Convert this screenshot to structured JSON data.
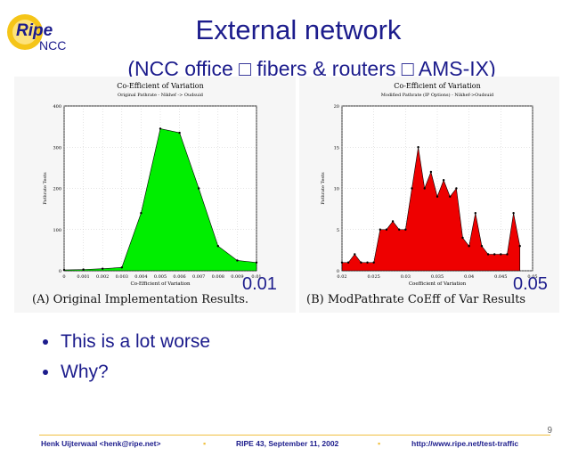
{
  "logo": {
    "line1": "Ripe",
    "line2": "NCC"
  },
  "header": {
    "title": "External network",
    "subtitle": "(NCC office □ fibers & routers □ AMS-IX)"
  },
  "charts_meta": {
    "left_corner_label": "0.01",
    "right_corner_label": "0.05",
    "left_caption": "(A) Original Implementation Results.",
    "right_caption": "(B) ModPathrate CoEff of Var Results"
  },
  "chart_data": [
    {
      "type": "area",
      "title": "Co-Efficient of Variation",
      "subtitle": "Original Pathrate - Nikhef -> Oudsuid",
      "xlabel": "Co-Efficient of Variation",
      "ylabel": "Pathrate Tests",
      "xlim": [
        0,
        0.01
      ],
      "ylim": [
        0,
        400
      ],
      "xticks": [
        "0",
        "0.001",
        "0.002",
        "0.003",
        "0.004",
        "0.005",
        "0.006",
        "0.007",
        "0.008",
        "0.009",
        "0.01"
      ],
      "yticks": [
        "0",
        "100",
        "200",
        "300",
        "400"
      ],
      "x": [
        0,
        0.001,
        0.002,
        0.003,
        0.004,
        0.005,
        0.006,
        0.007,
        0.008,
        0.009,
        0.01
      ],
      "values": [
        2,
        3,
        5,
        8,
        140,
        345,
        335,
        200,
        60,
        25,
        20
      ],
      "fill": "#00ee00",
      "grid": true
    },
    {
      "type": "area",
      "title": "Co-Efficient of Variation",
      "subtitle": "Modified Pathrate (IP Options) - Nikhef->Oudsuid",
      "xlabel": "Coefficient of Variation",
      "ylabel": "Pathrate Tests",
      "xlim": [
        0.02,
        0.05
      ],
      "ylim": [
        0,
        20
      ],
      "xticks": [
        "0.02",
        "0.025",
        "0.03",
        "0.035",
        "0.04",
        "0.045",
        "0.05"
      ],
      "yticks": [
        "0",
        "5",
        "10",
        "15",
        "20"
      ],
      "x": [
        0.02,
        0.021,
        0.022,
        0.023,
        0.024,
        0.025,
        0.026,
        0.027,
        0.028,
        0.029,
        0.03,
        0.031,
        0.032,
        0.033,
        0.034,
        0.035,
        0.036,
        0.037,
        0.038,
        0.039,
        0.04,
        0.041,
        0.042,
        0.043,
        0.044,
        0.045,
        0.046,
        0.047,
        0.048
      ],
      "values": [
        1,
        1,
        2,
        1,
        1,
        1,
        5,
        5,
        6,
        5,
        5,
        10,
        15,
        10,
        12,
        9,
        11,
        9,
        10,
        4,
        3,
        7,
        3,
        2,
        2,
        2,
        2,
        7,
        3
      ],
      "fill": "#ee0000",
      "grid": true
    }
  ],
  "bullets": [
    "This is a lot worse",
    "Why?"
  ],
  "footer": {
    "author": "Henk Uijterwaal <henk@ripe.net>",
    "event": "RIPE 43, September 11, 2002",
    "url": "http://www.ripe.net/test-traffic",
    "page": "9"
  },
  "colors": {
    "title": "#1c1c8c",
    "accent": "#f0c040"
  }
}
